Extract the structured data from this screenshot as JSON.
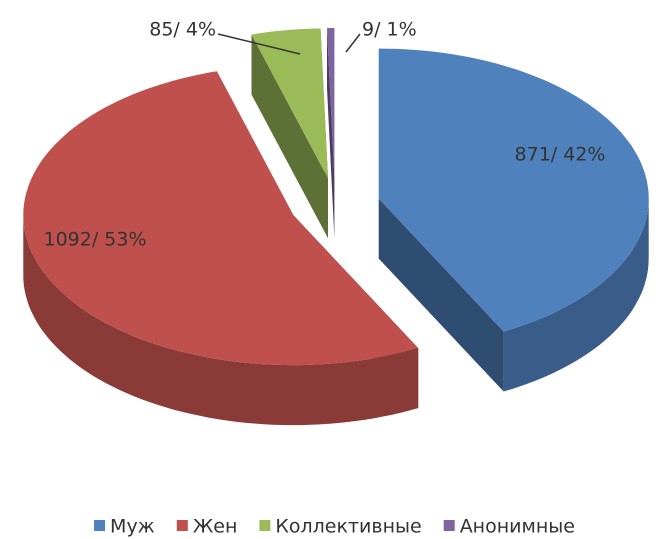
{
  "chart_data": {
    "type": "pie3d",
    "categories": [
      "Муж",
      "Жен",
      "Коллективные",
      "Анонимные"
    ],
    "values": [
      871,
      1092,
      85,
      9
    ],
    "value_labels": [
      "871/ 42%",
      "1092/ 53%",
      "85/ 4%",
      "9/ 1%"
    ],
    "colors": [
      "#4f81bd",
      "#c0504d",
      "#9bbb59",
      "#8064a2"
    ],
    "legend": "bottom"
  }
}
